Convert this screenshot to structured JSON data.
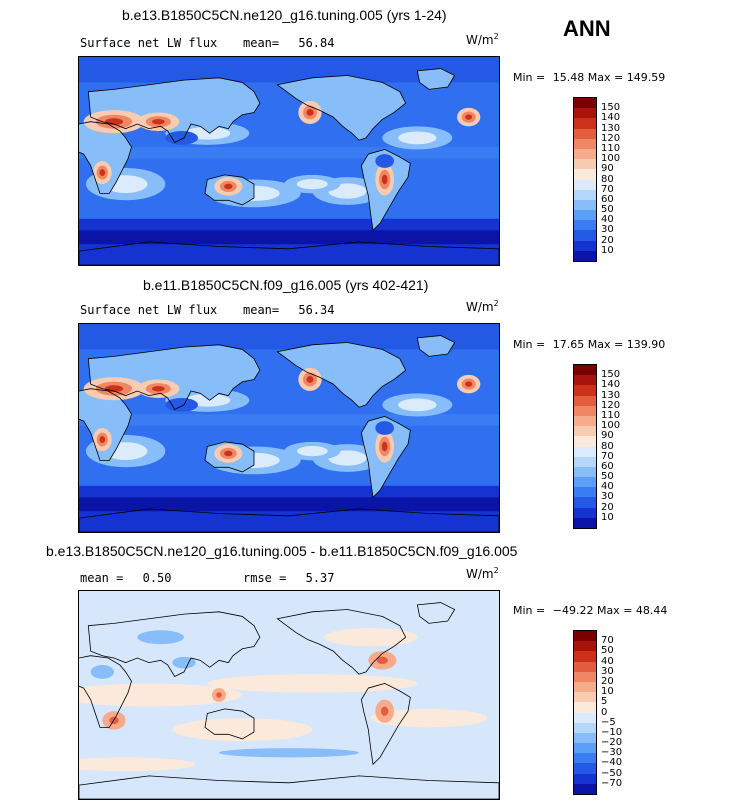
{
  "season_label": "ANN",
  "units": "W/m",
  "units_exp": "2",
  "colors": {
    "seq": [
      "#08006b",
      "#0a14a6",
      "#1533d0",
      "#2459e6",
      "#3a7df2",
      "#5c9ff6",
      "#87bdf9",
      "#b5d7fb",
      "#dcebfc",
      "#fbe9db",
      "#f9cbb1",
      "#f6ac8a",
      "#ef8764",
      "#e45d3f",
      "#cc3219",
      "#a8140b",
      "#7a0000"
    ],
    "diff": [
      "#08006b",
      "#0a14a6",
      "#1533d0",
      "#2459e6",
      "#3a7df2",
      "#5c9ff6",
      "#87bdf9",
      "#b5d7fb",
      "#dcebfc",
      "#fbe9db",
      "#f9cbb1",
      "#f6ac8a",
      "#ef8764",
      "#e45d3f",
      "#cc3219",
      "#a8140b",
      "#7a0000"
    ],
    "coast": "#000000",
    "ocean_base": "#2f6ff0",
    "diff_base": "#d6e6fb"
  },
  "panels": [
    {
      "title": "b.e13.B1850C5CN.ne120_g16.tuning.005 (yrs 1-24)",
      "variable": "Surface net LW flux",
      "stat1_label": "mean=",
      "stat1_value": "56.84",
      "min_label": "Min =",
      "min_value": "15.48",
      "max_label": "Max =",
      "max_value": "149.59",
      "levels": [
        "150",
        "140",
        "130",
        "120",
        "110",
        "100",
        "90",
        "80",
        "70",
        "60",
        "50",
        "40",
        "30",
        "20",
        "10"
      ]
    },
    {
      "title": "b.e11.B1850C5CN.f09_g16.005 (yrs 402-421)",
      "variable": "Surface net LW flux",
      "stat1_label": "mean=",
      "stat1_value": "56.34",
      "min_label": "Min =",
      "min_value": "17.65",
      "max_label": "Max =",
      "max_value": "139.90",
      "levels": [
        "150",
        "140",
        "130",
        "120",
        "110",
        "100",
        "90",
        "80",
        "70",
        "60",
        "50",
        "40",
        "30",
        "20",
        "10"
      ]
    },
    {
      "title": "b.e13.B1850C5CN.ne120_g16.tuning.005 - b.e11.B1850C5CN.f09_g16.005",
      "stat1_label": "mean =",
      "stat1_value": "0.50",
      "stat2_label": "rmse =",
      "stat2_value": "5.37",
      "min_label": "Min =",
      "min_value": "−49.22",
      "max_label": "Max =",
      "max_value": "48.44",
      "levels": [
        "70",
        "50",
        "40",
        "30",
        "20",
        "10",
        "5",
        "0",
        "−5",
        "−10",
        "−20",
        "−30",
        "−40",
        "−50",
        "−70"
      ]
    }
  ],
  "chart_data": [
    {
      "type": "heatmap",
      "title": "b.e13.B1850C5CN.ne120_g16.tuning.005 (yrs 1-24)",
      "variable": "Surface net LW flux",
      "units": "W/m2",
      "mean": 56.84,
      "min": 15.48,
      "max": 149.59,
      "contour_levels": [
        10,
        20,
        30,
        40,
        50,
        60,
        70,
        80,
        90,
        100,
        110,
        120,
        130,
        140,
        150
      ]
    },
    {
      "type": "heatmap",
      "title": "b.e11.B1850C5CN.f09_g16.005 (yrs 402-421)",
      "variable": "Surface net LW flux",
      "units": "W/m2",
      "mean": 56.34,
      "min": 17.65,
      "max": 139.9,
      "contour_levels": [
        10,
        20,
        30,
        40,
        50,
        60,
        70,
        80,
        90,
        100,
        110,
        120,
        130,
        140,
        150
      ]
    },
    {
      "type": "heatmap",
      "title": "b.e13.B1850C5CN.ne120_g16.tuning.005 - b.e11.B1850C5CN.f09_g16.005",
      "units": "W/m2",
      "mean": 0.5,
      "rmse": 5.37,
      "min": -49.22,
      "max": 48.44,
      "contour_levels": [
        -70,
        -50,
        -40,
        -30,
        -20,
        -10,
        -5,
        0,
        5,
        10,
        20,
        30,
        40,
        50,
        70
      ]
    }
  ]
}
